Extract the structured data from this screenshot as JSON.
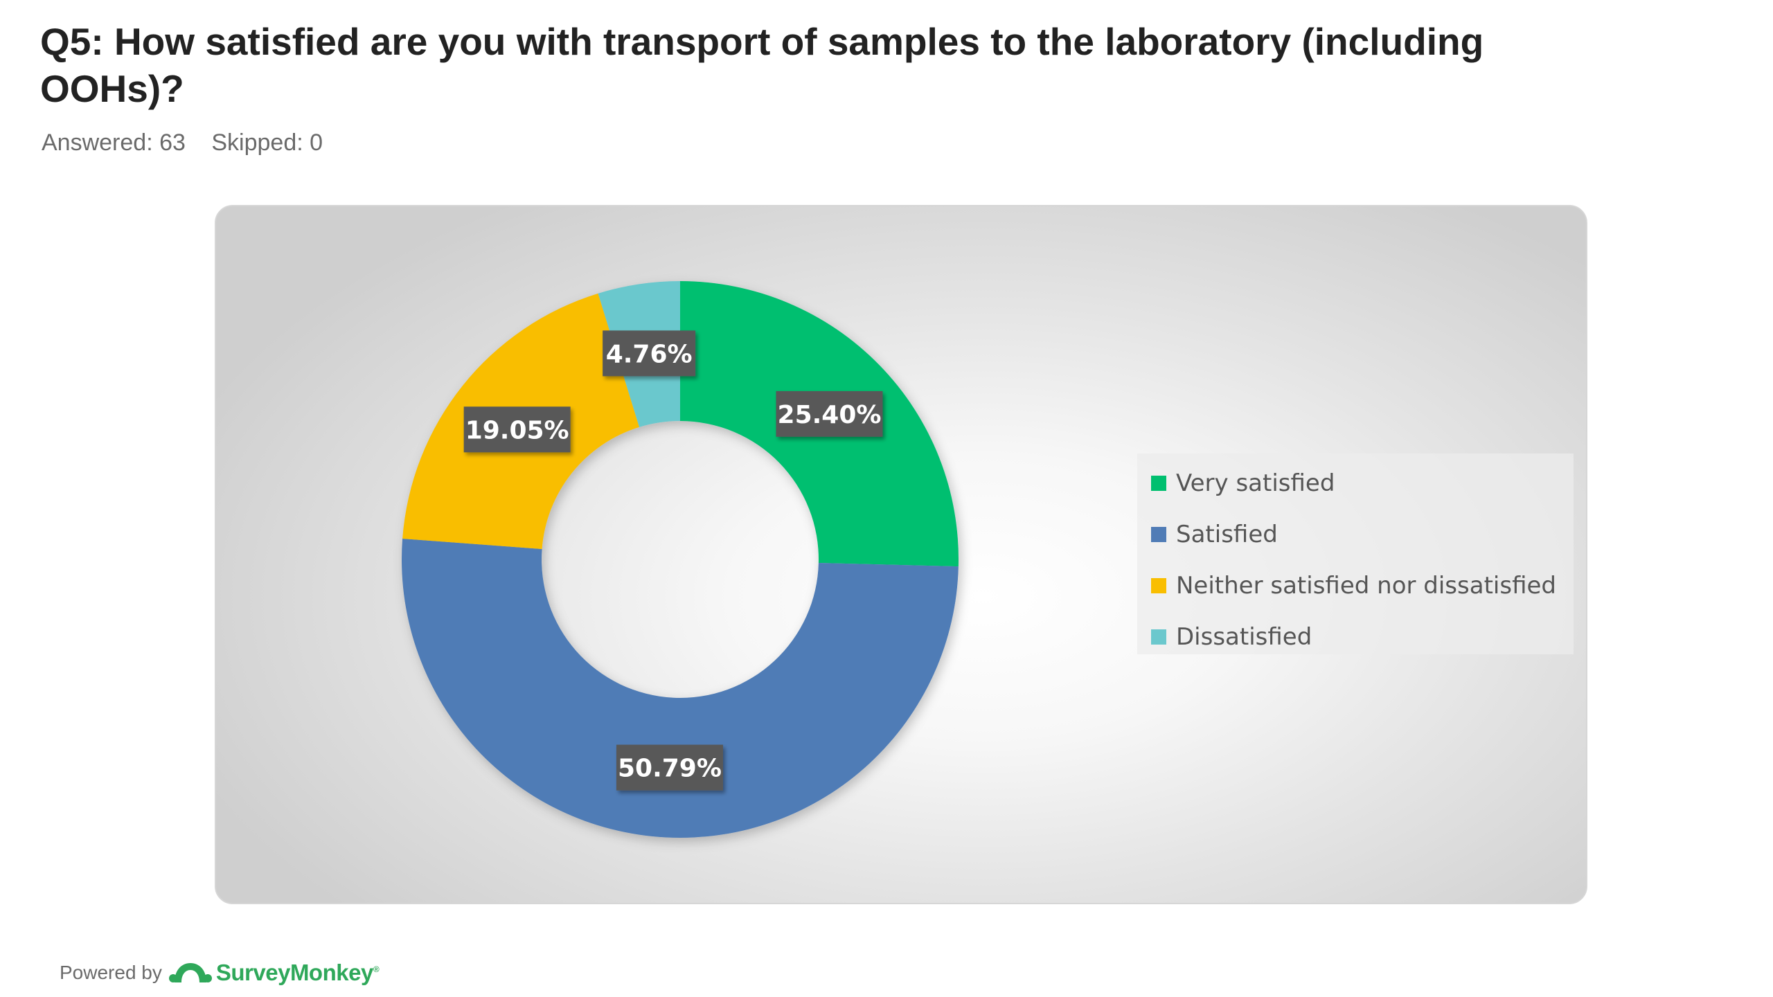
{
  "question": {
    "title": "Q5: How satisfied are you with transport of samples to the laboratory (including OOHs)?",
    "answered": "Answered: 63",
    "skipped": "Skipped: 0"
  },
  "chart_data": {
    "type": "pie",
    "variant": "donut",
    "categories": [
      "Very satisfied",
      "Satisfied",
      "Neither satisfied nor dissatisfied",
      "Dissatisfied"
    ],
    "values": [
      25.4,
      50.79,
      19.05,
      4.76
    ],
    "labels": [
      "25.40%",
      "50.79%",
      "19.05%",
      "4.76%"
    ],
    "colors": [
      "#00bf6f",
      "#507cb6",
      "#f9be00",
      "#6bc8cd"
    ],
    "legend_position": "right"
  },
  "colors": {
    "label_bg": "#595959",
    "label_text": "#ffffff",
    "brand_green": "#2fa85a"
  },
  "footer": {
    "powered_by": "Powered by",
    "brand": "SurveyMonkey",
    "logo_icon": "surveymonkey-logo-icon"
  }
}
